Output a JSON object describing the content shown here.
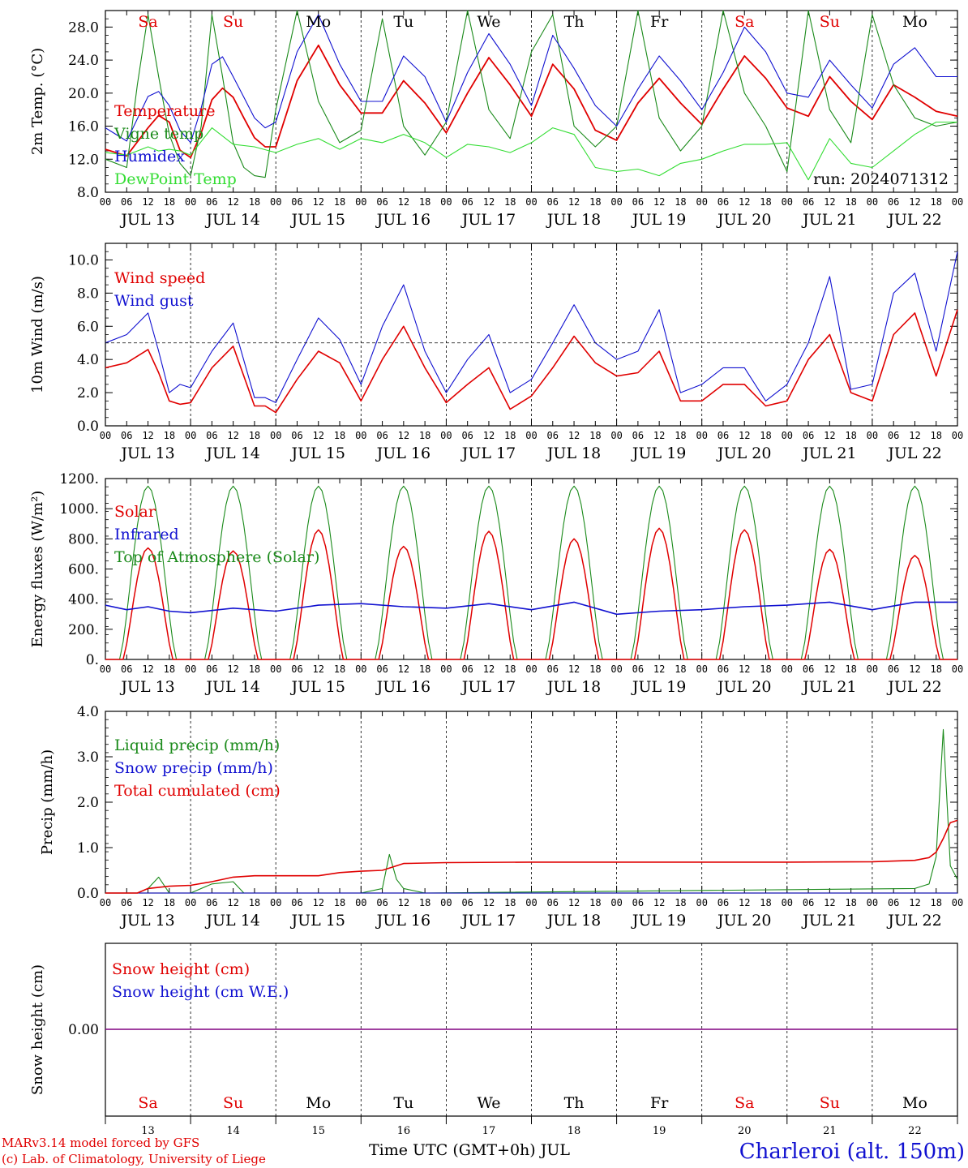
{
  "day_names": [
    "Sa",
    "Su",
    "Mo",
    "Tu",
    "We",
    "Th",
    "Fr",
    "Sa",
    "Su",
    "Mo"
  ],
  "day_colors": [
    "#e00000",
    "#e00000",
    "#000000",
    "#000000",
    "#000000",
    "#000000",
    "#000000",
    "#e00000",
    "#e00000",
    "#000000"
  ],
  "date_labels": [
    "JUL 13",
    "JUL 14",
    "JUL 15",
    "JUL 16",
    "JUL 17",
    "JUL 18",
    "JUL 19",
    "JUL 20",
    "JUL 21",
    "JUL 22"
  ],
  "hour_ticks": [
    "00",
    "06",
    "12",
    "18"
  ],
  "bottom_day_numbers": [
    "13",
    "14",
    "15",
    "16",
    "17",
    "18",
    "19",
    "20",
    "21",
    "22"
  ],
  "footer": {
    "model": "MARv3.14 model forced by GFS",
    "copyright": "(c) Lab. of Climatology, University of Liege",
    "xlabel": "Time UTC (GMT+0h) JUL",
    "station": "Charleroi (alt. 150m)"
  },
  "colors": {
    "red": "#e00000",
    "green": "#1a8a1a",
    "blue": "#1010d0",
    "lightgreen": "#33dd33",
    "purple": "#800080"
  },
  "chart_data": [
    {
      "type": "line",
      "ylabel": "2m Temp. (°C)",
      "ylim": [
        8,
        30
      ],
      "yticks": [
        "8.0",
        "12.0",
        "16.0",
        "20.0",
        "24.0",
        "28.0"
      ],
      "annotation": "run: 2024071312",
      "x_unit": "hours since JUL 13 00 UTC",
      "series": [
        {
          "name": "Temperature",
          "color": "#e00000",
          "x": [
            0,
            6,
            12,
            15,
            18,
            21,
            24,
            27,
            30,
            33,
            36,
            39,
            42,
            45,
            48,
            54,
            60,
            66,
            72,
            78,
            84,
            90,
            96,
            102,
            108,
            114,
            120,
            126,
            132,
            138,
            144,
            150,
            156,
            162,
            168,
            174,
            180,
            186,
            192,
            198,
            204,
            210,
            216,
            222,
            228,
            234,
            240
          ],
          "y": [
            13.2,
            12.4,
            15.8,
            17.3,
            16.5,
            13.1,
            12.2,
            15.2,
            19.2,
            20.6,
            19.5,
            17.0,
            14.6,
            13.5,
            13.5,
            21.5,
            25.8,
            21.0,
            17.6,
            17.6,
            21.5,
            18.8,
            15.2,
            20.0,
            24.3,
            21.0,
            17.2,
            23.5,
            20.5,
            15.5,
            14.3,
            18.8,
            21.8,
            18.8,
            16.2,
            20.5,
            24.5,
            21.8,
            18.2,
            17.2,
            22.0,
            19.0,
            16.8,
            21.0,
            19.5,
            17.8,
            17.2
          ]
        },
        {
          "name": "Vigne temp",
          "color": "#1a8a1a",
          "x": [
            0,
            6,
            9,
            12,
            15,
            18,
            21,
            24,
            27,
            30,
            33,
            36,
            39,
            42,
            45,
            48,
            54,
            60,
            66,
            72,
            78,
            84,
            90,
            96,
            102,
            108,
            114,
            120,
            126,
            132,
            138,
            144,
            150,
            156,
            162,
            168,
            174,
            180,
            186,
            192,
            198,
            204,
            210,
            216,
            222,
            228,
            234,
            240
          ],
          "y": [
            12.0,
            11.0,
            21.0,
            29.5,
            22.0,
            15.0,
            11.5,
            10.0,
            16.0,
            29.5,
            22.0,
            14.0,
            11.0,
            10.0,
            9.8,
            18.0,
            30.0,
            19.0,
            14.0,
            15.5,
            29.0,
            16.0,
            12.5,
            16.5,
            30.0,
            18.0,
            14.5,
            25.0,
            29.5,
            16.0,
            13.5,
            16.0,
            30.0,
            17.0,
            13.0,
            16.0,
            30.0,
            20.0,
            16.0,
            10.5,
            30.0,
            18.0,
            14.0,
            29.5,
            21.0,
            17.0,
            16.0,
            16.5
          ]
        },
        {
          "name": "Humidex",
          "color": "#1010d0",
          "x": [
            0,
            6,
            12,
            15,
            18,
            21,
            24,
            27,
            30,
            33,
            36,
            39,
            42,
            45,
            48,
            54,
            60,
            66,
            72,
            78,
            84,
            90,
            96,
            102,
            108,
            114,
            120,
            126,
            132,
            138,
            144,
            150,
            156,
            162,
            168,
            174,
            180,
            186,
            192,
            198,
            204,
            210,
            216,
            222,
            228,
            234,
            240
          ],
          "y": [
            15.8,
            14.2,
            19.6,
            20.2,
            18.5,
            15.5,
            14.0,
            18.2,
            23.5,
            24.4,
            22.0,
            19.5,
            17.0,
            15.8,
            16.5,
            25.0,
            29.5,
            23.5,
            19.0,
            19.0,
            24.5,
            22.0,
            16.5,
            22.5,
            27.2,
            23.5,
            18.5,
            27.0,
            23.0,
            18.5,
            16.0,
            20.5,
            24.5,
            21.5,
            18.0,
            22.5,
            28.0,
            25.0,
            20.0,
            19.5,
            24.0,
            21.0,
            18.2,
            23.5,
            25.5,
            22.0,
            22.0
          ]
        },
        {
          "name": "DewPoint Temp",
          "color": "#33dd33",
          "x": [
            0,
            6,
            12,
            15,
            18,
            21,
            24,
            30,
            36,
            42,
            48,
            54,
            60,
            66,
            72,
            78,
            84,
            90,
            96,
            102,
            108,
            114,
            120,
            126,
            132,
            138,
            144,
            150,
            156,
            162,
            168,
            174,
            180,
            186,
            192,
            198,
            204,
            210,
            216,
            222,
            228,
            234,
            240
          ],
          "y": [
            12.8,
            12.5,
            13.5,
            13.0,
            13.2,
            13.0,
            12.5,
            15.8,
            13.8,
            13.5,
            12.8,
            13.8,
            14.5,
            13.2,
            14.5,
            14.0,
            15.0,
            14.0,
            12.2,
            13.8,
            13.5,
            12.8,
            14.0,
            15.8,
            15.0,
            11.0,
            10.5,
            10.8,
            10.0,
            11.5,
            12.0,
            13.0,
            13.8,
            13.8,
            14.0,
            9.5,
            14.5,
            11.5,
            11.0,
            13.0,
            15.0,
            16.5,
            16.5
          ]
        }
      ]
    },
    {
      "type": "line",
      "ylabel": "10m Wind (m/s)",
      "ylim": [
        0,
        11
      ],
      "yticks": [
        "0.0",
        "2.0",
        "4.0",
        "6.0",
        "8.0",
        "10.0"
      ],
      "reference_line": 5,
      "series": [
        {
          "name": "Wind speed",
          "color": "#e00000",
          "x": [
            0,
            6,
            12,
            15,
            18,
            21,
            24,
            30,
            36,
            42,
            45,
            48,
            54,
            60,
            66,
            72,
            78,
            84,
            90,
            96,
            102,
            108,
            114,
            120,
            126,
            132,
            138,
            144,
            150,
            156,
            162,
            168,
            174,
            180,
            186,
            192,
            198,
            204,
            210,
            216,
            222,
            228,
            234,
            240
          ],
          "y": [
            3.5,
            3.8,
            4.6,
            3.2,
            1.5,
            1.3,
            1.4,
            3.5,
            4.8,
            1.2,
            1.2,
            0.8,
            2.8,
            4.5,
            3.8,
            1.5,
            4.0,
            6.0,
            3.5,
            1.4,
            2.5,
            3.5,
            1.0,
            1.8,
            3.5,
            5.4,
            3.8,
            3.0,
            3.2,
            4.5,
            1.5,
            1.5,
            2.5,
            2.5,
            1.2,
            1.5,
            4.0,
            5.5,
            2.0,
            1.5,
            5.5,
            6.8,
            3.0,
            7.0
          ]
        },
        {
          "name": "Wind gust",
          "color": "#1010d0",
          "x": [
            0,
            6,
            12,
            15,
            18,
            21,
            24,
            30,
            36,
            42,
            45,
            48,
            54,
            60,
            66,
            72,
            78,
            84,
            90,
            96,
            102,
            108,
            114,
            120,
            126,
            132,
            138,
            144,
            150,
            156,
            162,
            168,
            174,
            180,
            186,
            192,
            198,
            204,
            210,
            216,
            222,
            228,
            234,
            240
          ],
          "y": [
            5.0,
            5.5,
            6.8,
            4.5,
            2.0,
            2.5,
            2.3,
            4.5,
            6.2,
            1.7,
            1.7,
            1.4,
            4.0,
            6.5,
            5.2,
            2.5,
            6.0,
            8.5,
            4.5,
            2.0,
            4.0,
            5.5,
            2.0,
            2.8,
            5.0,
            7.3,
            5.0,
            4.0,
            4.5,
            7.0,
            2.0,
            2.5,
            3.5,
            3.5,
            1.5,
            2.5,
            5.0,
            9.0,
            2.2,
            2.5,
            8.0,
            9.2,
            4.5,
            10.5
          ]
        }
      ]
    },
    {
      "type": "line",
      "ylabel": "Energy fluxes (W/m²)",
      "ylim": [
        0,
        1200
      ],
      "yticks": [
        "0.",
        "200.",
        "400.",
        "600.",
        "800.",
        "1000.",
        "1200."
      ],
      "series": [
        {
          "name": "Solar",
          "color": "#e00000",
          "peaks": [
            740,
            720,
            860,
            750,
            850,
            800,
            870,
            860,
            730,
            690
          ]
        },
        {
          "name": "Infrared",
          "color": "#1010d0",
          "x": [
            0,
            6,
            12,
            18,
            24,
            36,
            48,
            60,
            72,
            84,
            96,
            108,
            120,
            132,
            144,
            156,
            168,
            180,
            192,
            204,
            216,
            228,
            240
          ],
          "y": [
            360,
            330,
            350,
            320,
            310,
            340,
            320,
            360,
            370,
            350,
            340,
            370,
            330,
            380,
            300,
            320,
            330,
            350,
            360,
            380,
            330,
            380,
            380
          ]
        },
        {
          "name": "Top of Atmosphere (Solar)",
          "color": "#1a8a1a",
          "peak": 1150
        }
      ]
    },
    {
      "type": "line",
      "ylabel": "Precip (mm/h)",
      "ylim": [
        0,
        4
      ],
      "yticks": [
        "0.0",
        "1.0",
        "2.0",
        "3.0",
        "4.0"
      ],
      "series": [
        {
          "name": "Liquid precip (mm/h)",
          "color": "#1a8a1a",
          "x": [
            0,
            9,
            12,
            15,
            18,
            24,
            30,
            36,
            39,
            42,
            72,
            78,
            80,
            82,
            84,
            90,
            228,
            232,
            234,
            236,
            238,
            240
          ],
          "y": [
            0,
            0,
            0.1,
            0.35,
            0,
            0,
            0.2,
            0.25,
            0,
            0,
            0,
            0.1,
            0.85,
            0.3,
            0.1,
            0,
            0.1,
            0.2,
            0.8,
            3.6,
            0.6,
            0.3
          ]
        },
        {
          "name": "Snow precip (mm/h)",
          "color": "#1010d0",
          "x": [
            0,
            240
          ],
          "y": [
            0,
            0
          ]
        },
        {
          "name": "Total cumulated (cm)",
          "color": "#e00000",
          "x": [
            0,
            9,
            12,
            18,
            24,
            30,
            36,
            42,
            48,
            60,
            66,
            72,
            78,
            84,
            96,
            120,
            144,
            168,
            192,
            216,
            228,
            232,
            234,
            236,
            238,
            240
          ],
          "y": [
            0,
            0,
            0.1,
            0.15,
            0.17,
            0.25,
            0.35,
            0.38,
            0.38,
            0.38,
            0.45,
            0.48,
            0.5,
            0.65,
            0.67,
            0.68,
            0.68,
            0.68,
            0.68,
            0.69,
            0.72,
            0.78,
            0.9,
            1.2,
            1.55,
            1.6
          ]
        }
      ]
    },
    {
      "type": "line",
      "ylabel": "Snow height (cm)",
      "yticks": [
        "0.00"
      ],
      "series": [
        {
          "name": "Snow height (cm)",
          "color": "#e00000",
          "x": [
            0,
            240
          ],
          "y": [
            0,
            0
          ]
        },
        {
          "name": "Snow height (cm W.E.)",
          "color": "#1010d0",
          "x": [
            0,
            240
          ],
          "y": [
            0,
            0
          ]
        }
      ]
    }
  ]
}
